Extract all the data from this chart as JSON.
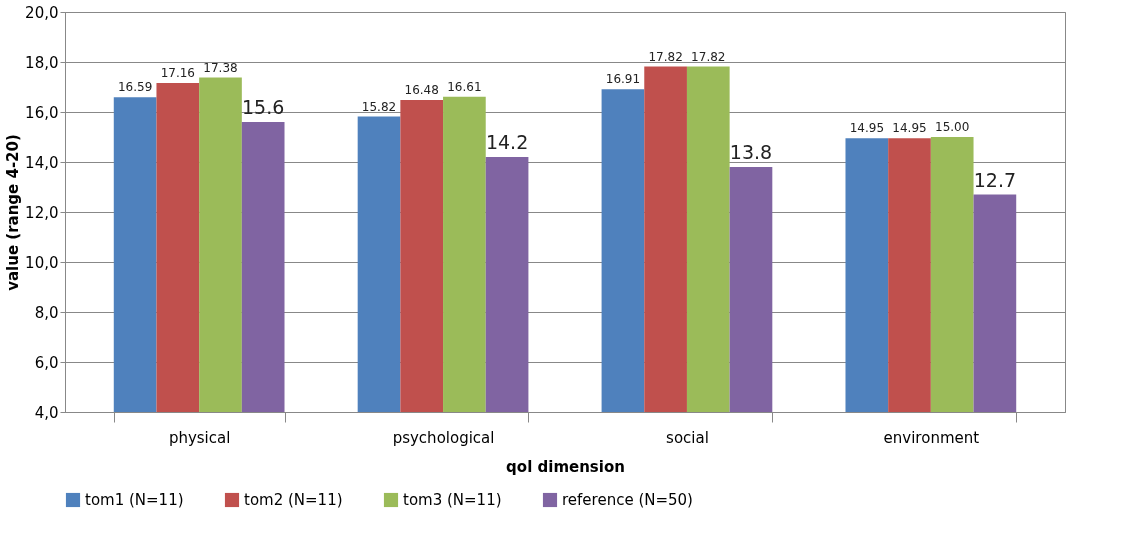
{
  "chart_data": {
    "type": "bar",
    "xlabel": "qol dimension",
    "ylabel": "value (range 4-20)",
    "categories": [
      "physical",
      "psychological",
      "social",
      "environment"
    ],
    "series": [
      {
        "name": "tom1 (N=11)",
        "color": "#4f81bd",
        "values": [
          16.59,
          15.82,
          16.91,
          14.95
        ],
        "value_labels": [
          "16.59",
          "15.82",
          "16.91",
          "14.95"
        ]
      },
      {
        "name": "tom2 (N=11)",
        "color": "#c0504d",
        "values": [
          17.16,
          16.48,
          17.82,
          14.95
        ],
        "value_labels": [
          "17.16",
          "16.48",
          "17.82",
          "14.95"
        ]
      },
      {
        "name": "tom3 (N=11)",
        "color": "#9bbb59",
        "values": [
          17.38,
          16.61,
          17.82,
          15.0
        ],
        "value_labels": [
          "17.38",
          "16.61",
          "17.82",
          "15.00"
        ]
      },
      {
        "name": "reference (N=50)",
        "color": "#8064a2",
        "values": [
          15.6,
          14.2,
          13.8,
          12.7
        ],
        "value_labels": [
          "15.6",
          "14.2",
          "13.8",
          "12.7"
        ]
      }
    ],
    "ylim": [
      4,
      20
    ],
    "yticks": [
      {
        "value": 4,
        "label": "4,0"
      },
      {
        "value": 6,
        "label": "6,0"
      },
      {
        "value": 8,
        "label": "8,0"
      },
      {
        "value": 10,
        "label": "10,0"
      },
      {
        "value": 12,
        "label": "12,0"
      },
      {
        "value": 14,
        "label": "14,0"
      },
      {
        "value": 16,
        "label": "16,0"
      },
      {
        "value": 18,
        "label": "18,0"
      },
      {
        "value": 20,
        "label": "20,0"
      }
    ],
    "grid": "y",
    "legend": "bottom"
  }
}
